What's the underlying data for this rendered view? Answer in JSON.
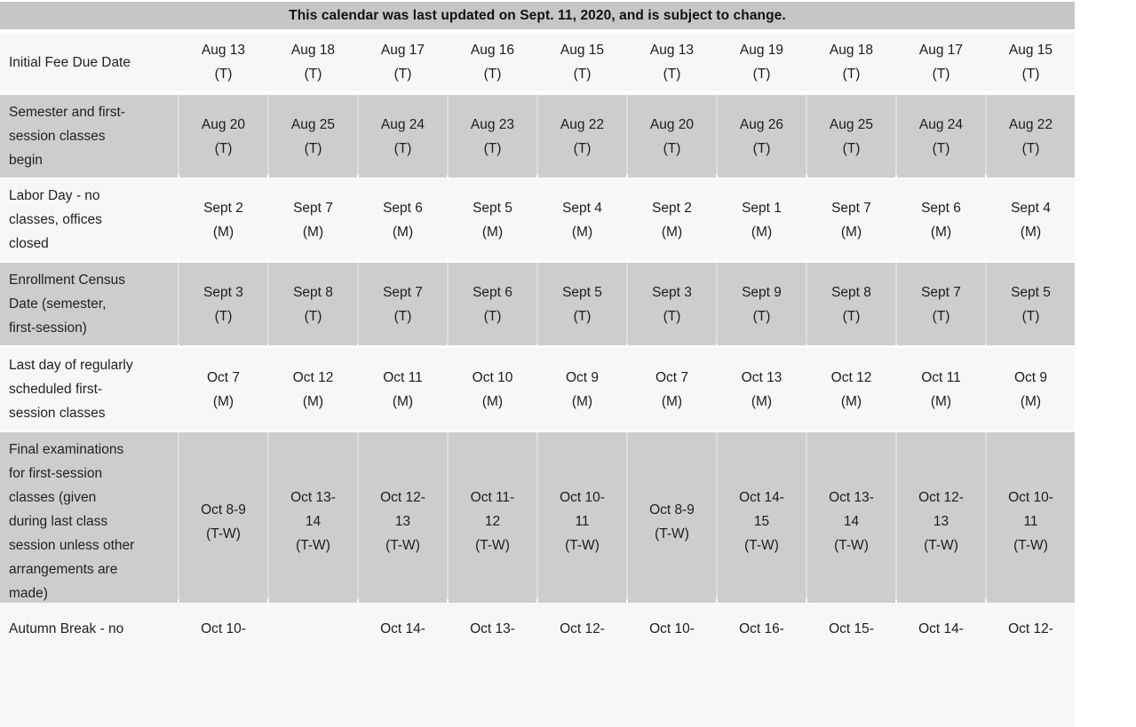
{
  "notice": {
    "text": "This calendar was last updated on Sept. 11, 2020, and is subject to change."
  },
  "colors": {
    "title_bar_bg": "#c6c6c6",
    "gray_row_bg": "#cdcdcd",
    "light_row_bg": "#f7f7f7",
    "text": "#1e1e1e"
  },
  "table": {
    "rows": [
      {
        "label": "Initial Fee Due Date",
        "cells": [
          "Aug 13\n(T)",
          "Aug 18\n(T)",
          "Aug 17\n(T)",
          "Aug 16\n(T)",
          "Aug 15\n(T)",
          "Aug 13\n(T)",
          "Aug 19\n(T)",
          "Aug 18\n(T)",
          "Aug 17\n(T)",
          "Aug 15\n(T)"
        ]
      },
      {
        "label": "Semester and first-\nsession classes\nbegin",
        "cells": [
          "Aug 20\n(T)",
          "Aug 25\n(T)",
          "Aug 24\n(T)",
          "Aug 23\n(T)",
          "Aug 22\n(T)",
          "Aug 20\n(T)",
          "Aug 26\n(T)",
          "Aug 25\n(T)",
          "Aug 24\n(T)",
          "Aug 22\n(T)"
        ]
      },
      {
        "label": "Labor Day - no\nclasses, offices\nclosed",
        "cells": [
          "Sept 2\n(M)",
          "Sept 7\n(M)",
          "Sept 6\n(M)",
          "Sept 5\n(M)",
          "Sept 4\n(M)",
          "Sept 2\n(M)",
          "Sept 1\n(M)",
          "Sept 7\n(M)",
          "Sept 6\n(M)",
          "Sept 4\n(M)"
        ]
      },
      {
        "label": "Enrollment Census\nDate (semester,\nfirst-session)",
        "cells": [
          "Sept 3\n(T)",
          "Sept 8\n(T)",
          "Sept 7\n(T)",
          "Sept 6\n(T)",
          "Sept 5\n(T)",
          "Sept 3\n(T)",
          "Sept 9\n(T)",
          "Sept 8\n(T)",
          "Sept 7\n(T)",
          "Sept 5\n(T)"
        ]
      },
      {
        "label": "Last day of regularly\nscheduled first-\nsession classes",
        "cells": [
          "Oct 7\n(M)",
          "Oct 12\n(M)",
          "Oct 11\n(M)",
          "Oct 10\n(M)",
          "Oct 9\n(M)",
          "Oct 7\n(M)",
          "Oct 13\n(M)",
          "Oct 12\n(M)",
          "Oct 11\n(M)",
          "Oct 9\n(M)"
        ]
      },
      {
        "label": "Final examinations\nfor first-session\nclasses (given\nduring last class\nsession unless other\narrangements are\nmade)",
        "cells": [
          "Oct 8-9\n(T-W)",
          "Oct 13-\n14\n(T-W)",
          "Oct 12-\n13\n(T-W)",
          "Oct 11-\n12\n(T-W)",
          "Oct 10-\n11\n(T-W)",
          "Oct 8-9\n(T-W)",
          "Oct 14-\n15\n(T-W)",
          "Oct 13-\n14\n(T-W)",
          "Oct 12-\n13\n(T-W)",
          "Oct 10-\n11\n(T-W)"
        ]
      },
      {
        "label": "Autumn Break - no",
        "cells": [
          "Oct 10-",
          "",
          "Oct 14-",
          "Oct 13-",
          "Oct 12-",
          "Oct 10-",
          "Oct 16-",
          "Oct 15-",
          "Oct 14-",
          "Oct 12-"
        ]
      }
    ]
  }
}
